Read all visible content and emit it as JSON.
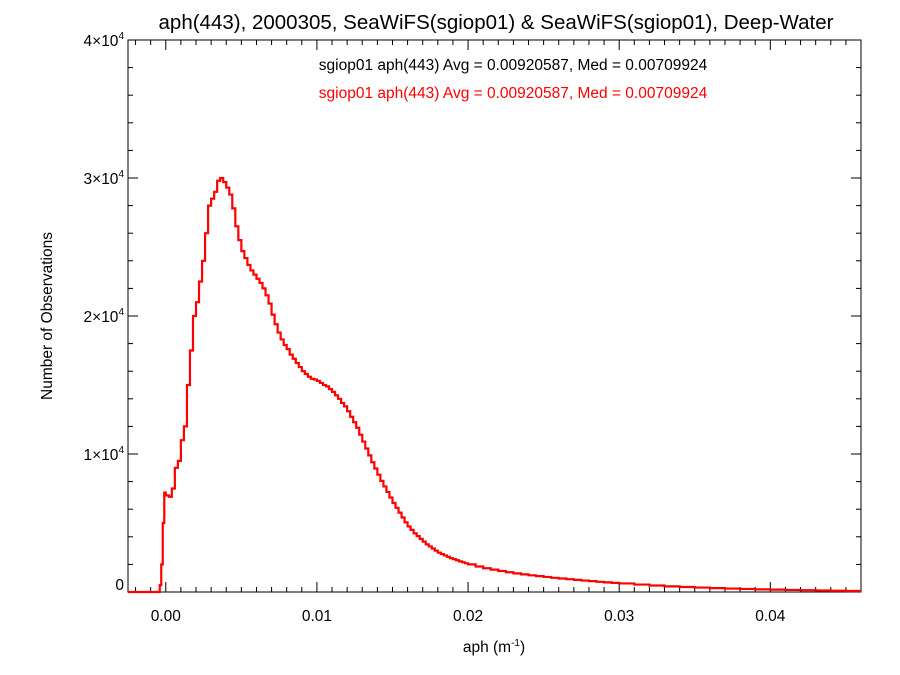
{
  "chart_data": {
    "type": "histogram-step",
    "title": "aph(443), 2000305, SeaWiFS(sgiop01) & SeaWiFS(sgiop01), Deep-Water",
    "xlabel": "aph",
    "xlabel_unit_base": "m",
    "xlabel_unit_exp": "-1",
    "ylabel": "Number of Observations",
    "xlim": [
      -0.0025,
      0.046
    ],
    "ylim": [
      0,
      40000
    ],
    "x_ticks": [
      {
        "value": 0.0,
        "label": "0.00"
      },
      {
        "value": 0.01,
        "label": "0.01"
      },
      {
        "value": 0.02,
        "label": "0.02"
      },
      {
        "value": 0.03,
        "label": "0.03"
      },
      {
        "value": 0.04,
        "label": "0.04"
      }
    ],
    "y_ticks": [
      {
        "value": 0,
        "mantissa": "0",
        "exp": ""
      },
      {
        "value": 10000,
        "mantissa": "1×10",
        "exp": "4"
      },
      {
        "value": 20000,
        "mantissa": "2×10",
        "exp": "4"
      },
      {
        "value": 30000,
        "mantissa": "3×10",
        "exp": "4"
      },
      {
        "value": 40000,
        "mantissa": "4×10",
        "exp": "4"
      }
    ],
    "annotations": [
      {
        "text": "sgiop01 aph(443) Avg = 0.00920587, Med = 0.00709924",
        "color": "#000000"
      },
      {
        "text": "sgiop01 aph(443) Avg = 0.00920587, Med = 0.00709924",
        "color": "#ff0000"
      }
    ],
    "series": [
      {
        "color": "#ff0000",
        "bin_width": 0.0002,
        "x": [
          -0.0025,
          -0.0005,
          -0.0004,
          -0.0003,
          -0.0002,
          -0.0001,
          0.0,
          0.0002,
          0.0004,
          0.0006,
          0.0008,
          0.001,
          0.0012,
          0.0014,
          0.0016,
          0.0018,
          0.002,
          0.0022,
          0.0024,
          0.0026,
          0.0028,
          0.003,
          0.0032,
          0.0034,
          0.0036,
          0.0038,
          0.004,
          0.0042,
          0.0044,
          0.0046,
          0.0048,
          0.005,
          0.0052,
          0.0054,
          0.0056,
          0.0058,
          0.006,
          0.0062,
          0.0064,
          0.0066,
          0.0068,
          0.007,
          0.0072,
          0.0074,
          0.0076,
          0.0078,
          0.008,
          0.0082,
          0.0084,
          0.0086,
          0.0088,
          0.009,
          0.0092,
          0.0094,
          0.0096,
          0.0098,
          0.01,
          0.0102,
          0.0104,
          0.0106,
          0.0108,
          0.011,
          0.0112,
          0.0114,
          0.0116,
          0.0118,
          0.012,
          0.0122,
          0.0124,
          0.0126,
          0.0128,
          0.013,
          0.0132,
          0.0134,
          0.0136,
          0.0138,
          0.014,
          0.0142,
          0.0144,
          0.0146,
          0.0148,
          0.015,
          0.0152,
          0.0154,
          0.0156,
          0.0158,
          0.016,
          0.0162,
          0.0164,
          0.0166,
          0.0168,
          0.017,
          0.0172,
          0.0174,
          0.0176,
          0.0178,
          0.018,
          0.0182,
          0.0184,
          0.0186,
          0.0188,
          0.019,
          0.0192,
          0.0194,
          0.0196,
          0.0198,
          0.02,
          0.0205,
          0.021,
          0.0215,
          0.022,
          0.0225,
          0.023,
          0.0235,
          0.024,
          0.0245,
          0.025,
          0.0255,
          0.026,
          0.0265,
          0.027,
          0.0275,
          0.028,
          0.0285,
          0.029,
          0.0295,
          0.03,
          0.031,
          0.032,
          0.033,
          0.034,
          0.035,
          0.036,
          0.037,
          0.038,
          0.039,
          0.04,
          0.041,
          0.042,
          0.043,
          0.044,
          0.045
        ],
        "y": [
          0,
          0,
          500,
          2000,
          5000,
          7200,
          7000,
          6900,
          7500,
          9000,
          9500,
          11000,
          12000,
          15000,
          17500,
          20000,
          21000,
          22500,
          24000,
          26000,
          28000,
          28500,
          29000,
          29800,
          30000,
          29700,
          29300,
          28800,
          27800,
          26500,
          25500,
          24700,
          24200,
          23700,
          23300,
          23000,
          22700,
          22400,
          22000,
          21500,
          20900,
          20100,
          19400,
          18800,
          18300,
          17900,
          17600,
          17200,
          16900,
          16600,
          16300,
          16000,
          15800,
          15600,
          15450,
          15400,
          15300,
          15150,
          15000,
          14900,
          14700,
          14500,
          14250,
          14000,
          13700,
          13450,
          13100,
          12700,
          12300,
          11900,
          11400,
          10900,
          10400,
          9900,
          9400,
          8950,
          8500,
          8050,
          7650,
          7250,
          6850,
          6450,
          6100,
          5750,
          5400,
          5050,
          4750,
          4500,
          4250,
          4050,
          3850,
          3650,
          3450,
          3300,
          3150,
          3000,
          2850,
          2750,
          2650,
          2550,
          2450,
          2380,
          2300,
          2220,
          2150,
          2080,
          2000,
          1850,
          1720,
          1620,
          1520,
          1430,
          1350,
          1280,
          1210,
          1150,
          1090,
          1030,
          980,
          930,
          880,
          830,
          790,
          740,
          700,
          660,
          620,
          540,
          470,
          410,
          360,
          320,
          280,
          250,
          220,
          190,
          170,
          150,
          130,
          110,
          90,
          70
        ]
      }
    ]
  }
}
